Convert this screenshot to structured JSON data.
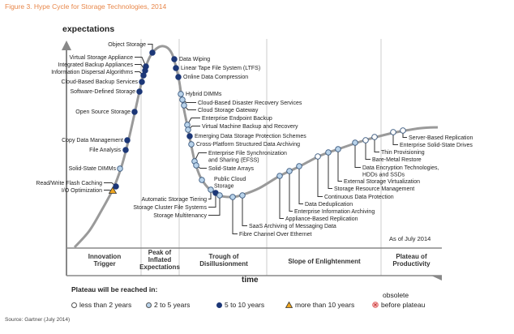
{
  "title": "Figure 3. Hype Cycle for Storage Technologies, 2014",
  "y_axis_label": "expectations",
  "x_axis_label": "time",
  "as_of": "As of July 2014",
  "phases": [
    "Innovation Trigger",
    "Peak of Inflated Expectations",
    "Trough of Disillusionment",
    "Slope of Enlightenment",
    "Plateau of Productivity"
  ],
  "phase_lines": {
    "innovation": [
      "Innovation",
      "Trigger"
    ],
    "peak": [
      "Peak of",
      "Inflated",
      "Expectations"
    ],
    "trough": [
      "Trough of",
      "Disillusionment"
    ],
    "slope": [
      "Slope of Enlightenment"
    ],
    "plateau": [
      "Plateau of",
      "Productivity"
    ]
  },
  "legend": {
    "title": "Plateau will be reached in:",
    "less_2": "less than 2 years",
    "two_5": "2 to 5 years",
    "five_10": "5 to 10 years",
    "more_10": "more than 10 years",
    "obsolete_1": "obsolete",
    "obsolete_2": "before plateau"
  },
  "colors": {
    "lt2": "#ffffff",
    "2to5": "#b9d3ea",
    "5to10": "#1c3777",
    "gt10": "#f0a720",
    "obsolete": "#e05a5a",
    "curve": "#9a9a9a",
    "title": "#e8874a"
  },
  "technologies": [
    {
      "label": "Object Storage",
      "status": "5to10"
    },
    {
      "label": "Virtual Storage Appliance",
      "status": "5to10"
    },
    {
      "label": "Integrated Backup Appliances",
      "status": "5to10"
    },
    {
      "label": "Information Dispersal Algorithms",
      "status": "5to10"
    },
    {
      "label": "Cloud-Based Backup Services",
      "status": "5to10"
    },
    {
      "label": "Software-Defined Storage",
      "status": "5to10"
    },
    {
      "label": "Open Source Storage",
      "status": "5to10"
    },
    {
      "label": "Copy Data Management",
      "status": "5to10"
    },
    {
      "label": "File Analysis",
      "status": "5to10"
    },
    {
      "label": "Solid-State DIMMs",
      "status": "2to5"
    },
    {
      "label": "Read/Write Flash Caching",
      "status": "5to10"
    },
    {
      "label": "I/O Optimization",
      "status": "gt10"
    },
    {
      "label": "Data Wiping",
      "status": "5to10"
    },
    {
      "label": "Linear Tape File System (LTFS)",
      "status": "5to10"
    },
    {
      "label": "Online Data Compression",
      "status": "5to10"
    },
    {
      "label": "Hybrid DIMMs",
      "status": "2to5"
    },
    {
      "label": "Cloud-Based Disaster Recovery Services",
      "status": "2to5"
    },
    {
      "label": "Cloud Storage Gateway",
      "status": "2to5"
    },
    {
      "label": "Enterprise Endpoint Backup",
      "status": "2to5"
    },
    {
      "label": "Virtual Machine Backup and Recovery",
      "status": "2to5"
    },
    {
      "label": "Emerging Data Storage Protection Schemes",
      "status": "5to10"
    },
    {
      "label": "Cross-Platform Structured Data Archiving",
      "status": "2to5"
    },
    {
      "label": "Enterprise File Synchronization",
      "label2": "and Sharing (EFSS)",
      "status": "2to5"
    },
    {
      "label": "Solid-State Arrays",
      "status": "2to5"
    },
    {
      "label": "Public Cloud",
      "label2": "Storage",
      "status": "2to5"
    },
    {
      "label": "Automatic Storage Tiering",
      "status": "2to5"
    },
    {
      "label": "Storage Cluster File Systems",
      "status": "5to10"
    },
    {
      "label": "Storage Multitenancy",
      "status": "2to5"
    },
    {
      "label": "Fibre Channel Over Ethernet",
      "status": "2to5"
    },
    {
      "label": "SaaS Archiving of Messaging Data",
      "status": "2to5"
    },
    {
      "label": "Appliance-Based Replication",
      "status": "2to5"
    },
    {
      "label": "Enterprise Information Archiving",
      "status": "2to5"
    },
    {
      "label": "Data Deduplication",
      "status": "2to5"
    },
    {
      "label": "Continuous Data Protection",
      "status": "lt2"
    },
    {
      "label": "Storage Resource Management",
      "status": "2to5"
    },
    {
      "label": "External Storage Virtualization",
      "status": "2to5"
    },
    {
      "label": "Data Encryption Technologies,",
      "label2": "HDDs and SSDs",
      "status": "2to5"
    },
    {
      "label": "Bare-Metal Restore",
      "status": "lt2"
    },
    {
      "label": "Thin Provisioning",
      "status": "lt2"
    },
    {
      "label": "Enterprise Solid-State Drives",
      "status": "lt2"
    },
    {
      "label": "Server-Based Replication",
      "status": "lt2"
    }
  ],
  "source": "Source: Gartner (July 2014)"
}
